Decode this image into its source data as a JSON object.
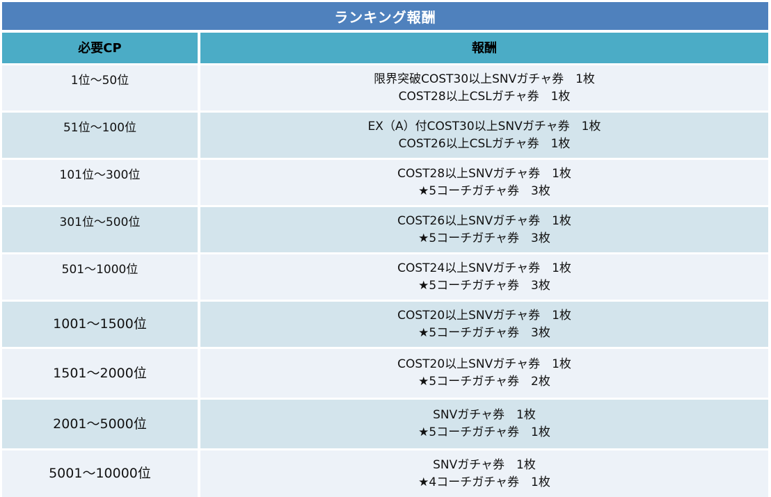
{
  "title": "ランキング報酬",
  "headers": {
    "rank": "必要CP",
    "reward": "報酬"
  },
  "rows": [
    {
      "rank": "1位～50位",
      "rewards": [
        "限界突破COST30以上SNVガチャ券　1枚",
        "COST28以上CSLガチャ券　1枚"
      ]
    },
    {
      "rank": "51位～100位",
      "rewards": [
        "EX（A）付COST30以上SNVガチャ券　1枚",
        "COST26以上CSLガチャ券　1枚"
      ]
    },
    {
      "rank": "101位～300位",
      "rewards": [
        "COST28以上SNVガチャ券　1枚",
        "★5コーチガチャ券　3枚"
      ]
    },
    {
      "rank": "301位～500位",
      "rewards": [
        "COST26以上SNVガチャ券　1枚",
        "★5コーチガチャ券　3枚"
      ]
    },
    {
      "rank": "501～1000位",
      "rewards": [
        "COST24以上SNVガチャ券　1枚",
        "★5コーチガチャ券　3枚"
      ]
    },
    {
      "rank": "1001～1500位",
      "rewards": [
        "COST20以上SNVガチャ券　1枚",
        "★5コーチガチャ券　3枚"
      ]
    },
    {
      "rank": "1501～2000位",
      "rewards": [
        "COST20以上SNVガチャ券　1枚",
        "★5コーチガチャ券　2枚"
      ]
    },
    {
      "rank": "2001～5000位",
      "rewards": [
        "SNVガチャ券　1枚",
        "★5コーチガチャ券　1枚"
      ]
    },
    {
      "rank": "5001～10000位",
      "rewards": [
        "SNVガチャ券　1枚",
        "★4コーチガチャ券　1枚"
      ]
    }
  ],
  "colors": {
    "title_bg": "#4f81bd",
    "header_bg": "#4bacc6",
    "row_light": "#edf2f8",
    "row_dark": "#d3e4ec"
  }
}
